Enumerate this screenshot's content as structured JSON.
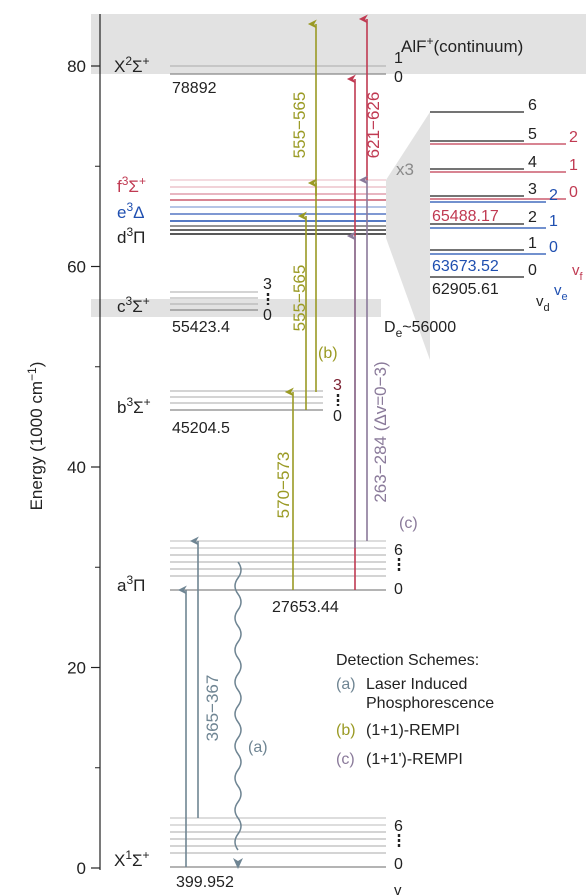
{
  "axis": {
    "label": "Energy (1000 cm",
    "label_exp": "−1",
    "label_close": ")",
    "ticks": [
      {
        "value": 0,
        "label": "0"
      },
      {
        "value": 20,
        "label": "20"
      },
      {
        "value": 40,
        "label": "40"
      },
      {
        "value": 60,
        "label": "60"
      },
      {
        "value": 80,
        "label": "80"
      }
    ]
  },
  "colors": {
    "olive": "#9a9a24",
    "red": "#c03a52",
    "violet": "#8a7a9a",
    "blue": "#1f4fb0",
    "slate": "#6f8593",
    "grey_band": "#e2e2e2",
    "level": "#9a9a9a",
    "dark": "#222222"
  },
  "continuum": {
    "label": "AlF",
    "sup": "+",
    "suffix": "(continuum)"
  },
  "states": {
    "X2": {
      "sym": "X",
      "mult": "2",
      "term": "Σ",
      "sup": "+",
      "energy": "78892",
      "v_top": "1",
      "v_bot": "0"
    },
    "f3": {
      "sym": "f",
      "mult": "3",
      "term": "Σ",
      "sup": "+"
    },
    "e3": {
      "sym": "e",
      "mult": "3",
      "term": "Δ"
    },
    "d3": {
      "sym": "d",
      "mult": "3",
      "term": "Π"
    },
    "c3": {
      "sym": "c",
      "mult": "3",
      "term": "Σ",
      "sup": "+",
      "energy": "55423.4",
      "v_top": "3",
      "v_bot": "0"
    },
    "De": {
      "sym": "D",
      "sub": "e",
      "value": "~56000"
    },
    "b3": {
      "sym": "b",
      "mult": "3",
      "term": "Σ",
      "sup": "+",
      "energy": "45204.5",
      "v_top": "3",
      "v_bot": "0"
    },
    "a3": {
      "sym": "a",
      "mult": "3",
      "term": "Π",
      "energy": "27653.44",
      "v_top": "6",
      "v_bot": "0"
    },
    "X1": {
      "sym": "X",
      "mult": "1",
      "term": "Σ",
      "sup": "+",
      "energy": "399.952",
      "v_top": "6",
      "v_bot": "0",
      "v_label": "v"
    }
  },
  "transitions": {
    "t555_upper": "555−565",
    "t555_lower": "555−565",
    "t570": "570−573",
    "t621": "621−626",
    "t263": "263−284 (Δv=0−3)",
    "t365": "365−367",
    "b_label": "(b)",
    "c_label": "(c)",
    "a_label": "(a)"
  },
  "inset": {
    "zoom": "x3",
    "d_labels": [
      "6",
      "5",
      "4",
      "3",
      "2",
      "1",
      "0"
    ],
    "e_labels": [
      "2",
      "1",
      "0"
    ],
    "f_labels": [
      "2",
      "1",
      "0"
    ],
    "f_energy": "65488.17",
    "e_energy": "63673.52",
    "d_energy": "62905.61",
    "vd": {
      "v": "v",
      "sub": "d"
    },
    "ve": {
      "v": "v",
      "sub": "e"
    },
    "vf": {
      "v": "v",
      "sub": "f"
    }
  },
  "legend": {
    "title": "Detection Schemes:",
    "a_tag": "(a)",
    "a_line1": "Laser Induced",
    "a_line2": "Phosphorescence",
    "b_tag": "(b)",
    "b_text": "(1+1)-REMPI",
    "c_tag": "(c)",
    "c_text": "(1+1')-REMPI"
  }
}
